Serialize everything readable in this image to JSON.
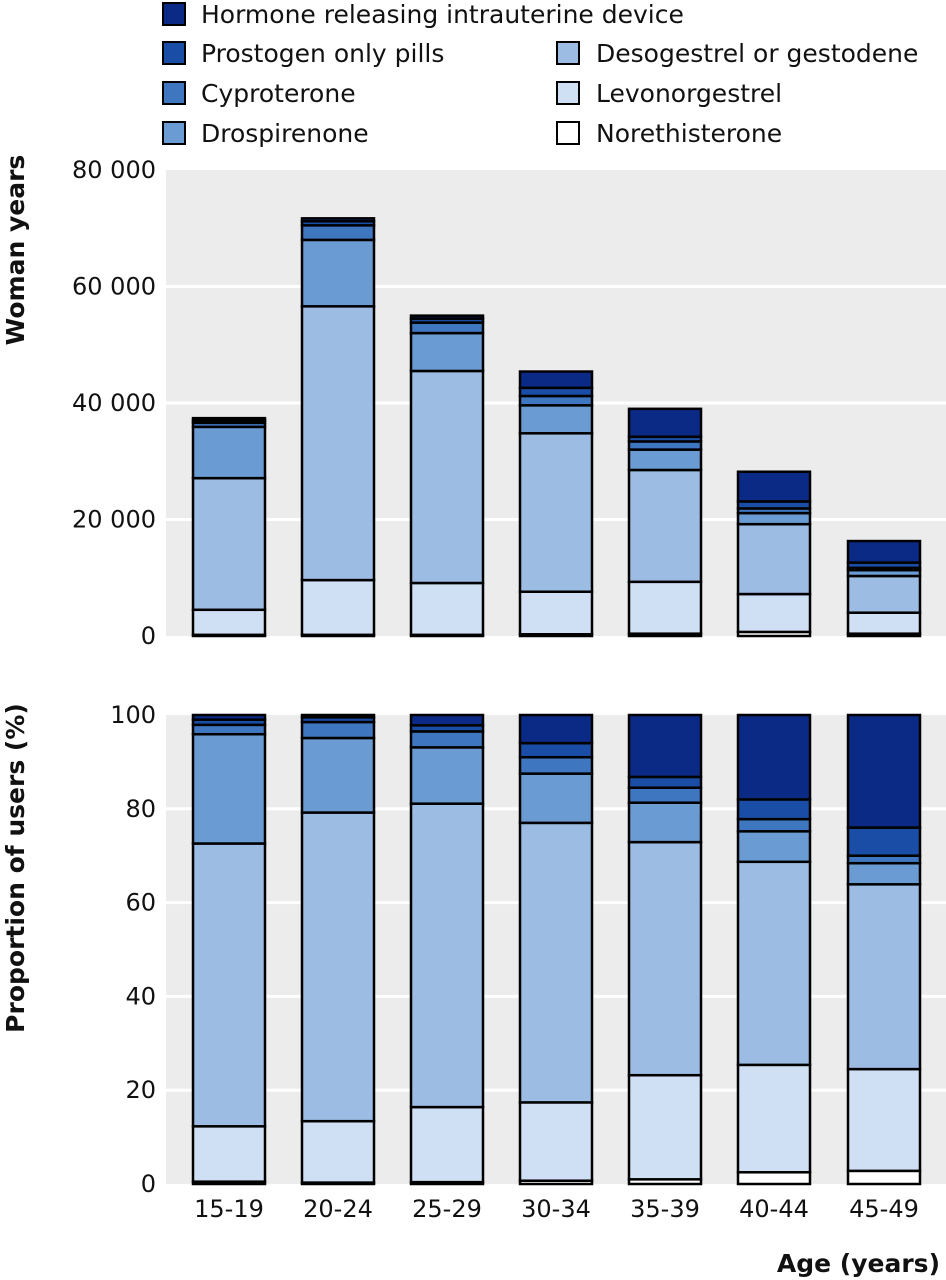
{
  "legend": {
    "items": [
      {
        "label": "Hormone releasing intrauterine device",
        "color": "#0b2a86"
      },
      {
        "label": "Prostogen only pills",
        "color": "#1a4ea6"
      },
      {
        "label": "Cyproterone",
        "color": "#3f76c0"
      },
      {
        "label": "Drospirenone",
        "color": "#6a9bd2"
      },
      {
        "label": "Desogestrel or gestodene",
        "color": "#9cbce3"
      },
      {
        "label": "Levonorgestrel",
        "color": "#d0e0f4"
      },
      {
        "label": "Norethisterone",
        "color": "#ffffff"
      }
    ]
  },
  "chart_data": [
    {
      "type": "bar",
      "stacked": true,
      "categories": [
        "15-19",
        "20-24",
        "25-29",
        "30-34",
        "35-39",
        "40-44",
        "45-49"
      ],
      "ylabel": "Woman years",
      "xlabel": "Age (years)",
      "ylim": [
        0,
        80000
      ],
      "yticks": [
        "0",
        "20 000",
        "40 000",
        "60 000",
        "80 000"
      ],
      "ytick_values": [
        0,
        20000,
        40000,
        60000,
        80000
      ],
      "grid": true,
      "series": [
        {
          "name": "Norethisterone",
          "values": [
            200,
            200,
            200,
            300,
            400,
            700,
            400
          ]
        },
        {
          "name": "Levonorgestrel",
          "values": [
            4300,
            9400,
            8900,
            7300,
            8900,
            6500,
            3600
          ]
        },
        {
          "name": "Desogestrel or gestodene",
          "values": [
            22600,
            47000,
            36400,
            27200,
            19200,
            12000,
            6300
          ]
        },
        {
          "name": "Drospirenone",
          "values": [
            8800,
            11400,
            6500,
            4800,
            3500,
            1900,
            1000
          ]
        },
        {
          "name": "Cyproterone",
          "values": [
            700,
            2500,
            1800,
            1600,
            1400,
            800,
            400
          ]
        },
        {
          "name": "Prostogen only pills",
          "values": [
            400,
            700,
            700,
            1400,
            800,
            1200,
            900
          ]
        },
        {
          "name": "Hormone releasing intrauterine device",
          "values": [
            400,
            500,
            500,
            2800,
            4800,
            5100,
            3700
          ]
        }
      ]
    },
    {
      "type": "bar",
      "stacked": true,
      "categories": [
        "15-19",
        "20-24",
        "25-29",
        "30-34",
        "35-39",
        "40-44",
        "45-49"
      ],
      "ylabel": "Proportion of users (%)",
      "xlabel": "Age (years)",
      "ylim": [
        0,
        100
      ],
      "yticks": [
        "0",
        "20",
        "40",
        "60",
        "80",
        "100"
      ],
      "ytick_values": [
        0,
        20,
        40,
        60,
        80,
        100
      ],
      "grid": true,
      "series": [
        {
          "name": "Norethisterone",
          "values": [
            0.5,
            0.3,
            0.4,
            0.7,
            1,
            2.5,
            2.8
          ]
        },
        {
          "name": "Levonorgestrel",
          "values": [
            11.8,
            13.1,
            16,
            16.7,
            22.2,
            22.9,
            21.7
          ]
        },
        {
          "name": "Desogestrel or gestodene",
          "values": [
            60.3,
            65.8,
            64.7,
            59.6,
            49.7,
            43.3,
            39.4
          ]
        },
        {
          "name": "Drospirenone",
          "values": [
            23.3,
            15.9,
            12,
            10.5,
            8.4,
            6.5,
            4.5
          ]
        },
        {
          "name": "Cyproterone",
          "values": [
            2,
            3.4,
            3.4,
            3.5,
            3.2,
            2.6,
            1.6
          ]
        },
        {
          "name": "Prostogen only pills",
          "values": [
            1.1,
            1,
            1.3,
            3,
            2.3,
            4.2,
            6
          ]
        },
        {
          "name": "Hormone releasing intrauterine device",
          "values": [
            1,
            0.5,
            2.2,
            6,
            13.2,
            18,
            24
          ]
        }
      ]
    }
  ]
}
